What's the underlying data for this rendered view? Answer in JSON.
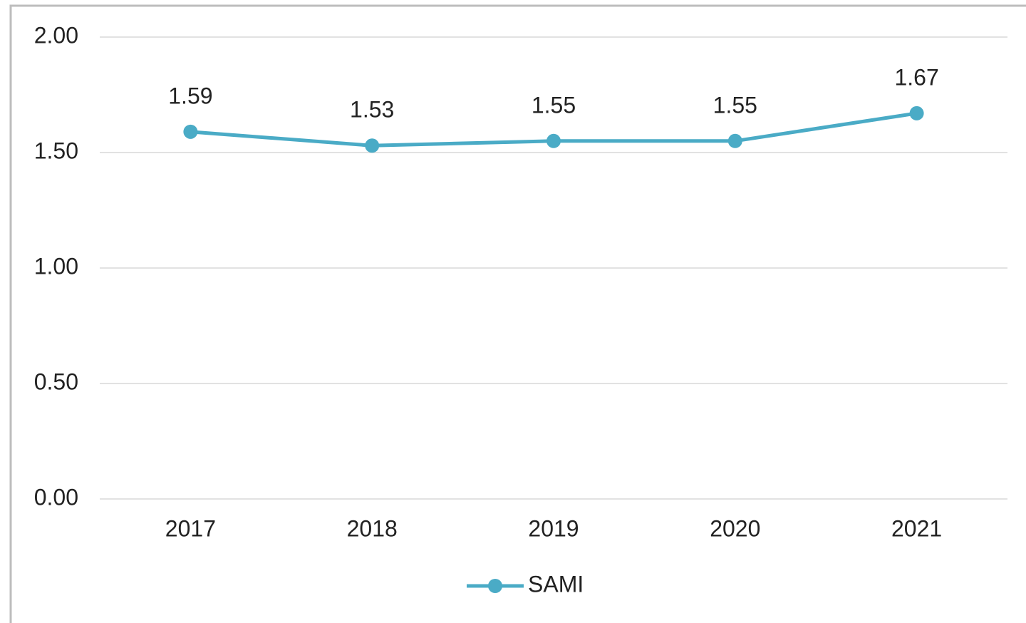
{
  "chart_data": {
    "type": "line",
    "categories": [
      "2017",
      "2018",
      "2019",
      "2020",
      "2021"
    ],
    "series": [
      {
        "name": "SAMI",
        "color": "#4aabc6",
        "values": [
          1.59,
          1.53,
          1.55,
          1.55,
          1.67
        ]
      }
    ],
    "ylim": [
      0,
      2
    ],
    "yticks": [
      {
        "value": 0,
        "label": "0.00"
      },
      {
        "value": 0.5,
        "label": "0.50"
      },
      {
        "value": 1,
        "label": "1.00"
      },
      {
        "value": 1.5,
        "label": "1.50"
      },
      {
        "value": 2,
        "label": "2.00"
      }
    ],
    "grid": true,
    "legend": "bottom"
  }
}
